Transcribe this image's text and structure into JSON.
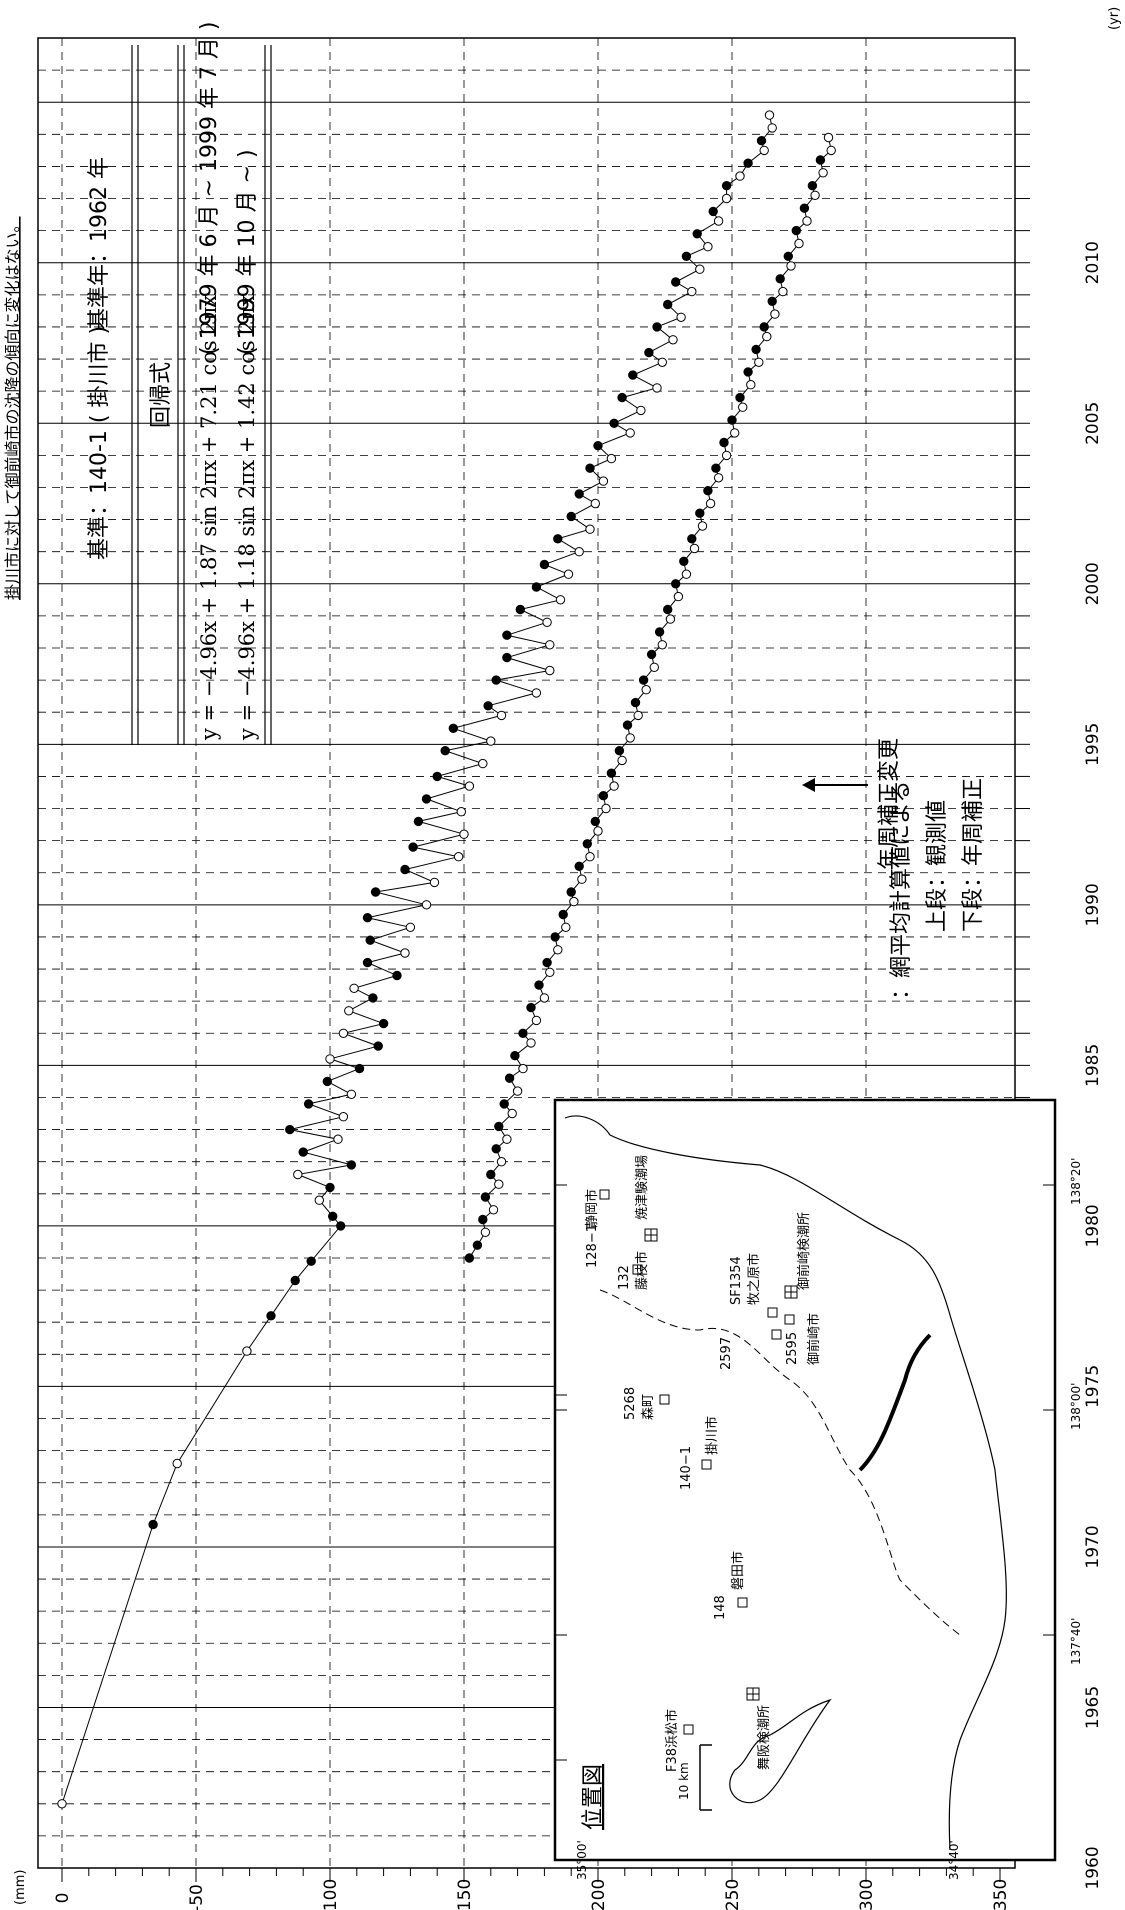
{
  "chart_data": {
    "type": "line",
    "title": "掛川市に対して御前崎市の沈降の傾向に変化はない。",
    "x_unit": "(yr)",
    "y_unit": "(mm)",
    "xlim": [
      1960,
      2017
    ],
    "ylim": [
      -350,
      10
    ],
    "x_ticks": [
      "1960",
      "1965",
      "1970",
      "1975",
      "1980",
      "1985",
      "1990",
      "1995",
      "2000",
      "2005",
      "2010"
    ],
    "y_ticks": [
      "0",
      "-50",
      "-100",
      "-150",
      "-200",
      "-250",
      "-300",
      "-350"
    ],
    "grid": true,
    "header": {
      "reference": "基準：140-1 ( 掛川市 )",
      "base_year": "基準年：1962 年",
      "regression_label": "回帰式",
      "formula_1": "y = −4.96x + 1.87 sin 2πx + 7.21 cos 2πx",
      "period_1": "( 1979 年  6  月   ~   1999 年 7 月 )",
      "formula_2": "y = −4.96x + 1.18 sin 2πx + 1.42 cos 2πx",
      "period_2": "( 1999 年 10 月   ~   )"
    },
    "annotation": "年周補正変更",
    "legend": {
      "line1": "：網平均計算値による",
      "line2": "上段：観測値",
      "line3": "下段：年周補正",
      "placement": "lower-right"
    },
    "series": [
      {
        "name": "上段：観測値",
        "x": [
          1962.0,
          1970.7,
          1972.6,
          1976.1,
          1977.2,
          1978.3,
          1978.9,
          1980.0,
          1980.3,
          1980.8,
          1981.2,
          1981.6,
          1981.9,
          1982.3,
          1982.7,
          1983.0,
          1983.4,
          1983.8,
          1984.1,
          1984.5,
          1984.9,
          1985.2,
          1985.6,
          1986.0,
          1986.3,
          1986.7,
          1987.1,
          1987.4,
          1987.8,
          1988.2,
          1988.5,
          1988.9,
          1989.3,
          1989.6,
          1990.0,
          1990.4,
          1990.7,
          1991.1,
          1991.5,
          1991.8,
          1992.2,
          1992.6,
          1992.9,
          1993.3,
          1993.7,
          1994.0,
          1994.4,
          1994.8,
          1995.1,
          1995.5,
          1995.9,
          1996.2,
          1996.6,
          1997.0,
          1997.3,
          1997.7,
          1998.1,
          1998.4,
          1998.8,
          1999.2,
          1999.5,
          1999.9,
          2000.3,
          2000.6,
          2001.0,
          2001.4,
          2001.7,
          2002.1,
          2002.5,
          2002.8,
          2003.2,
          2003.6,
          2003.9,
          2004.3,
          2004.7,
          2005.0,
          2005.4,
          2005.8,
          2006.1,
          2006.5,
          2006.9,
          2007.2,
          2007.6,
          2008.0,
          2008.3,
          2008.7,
          2009.1,
          2009.4,
          2009.8,
          2010.2,
          2010.5,
          2010.9,
          2011.3,
          2011.6,
          2012.0,
          2012.4,
          2012.7,
          2013.1,
          2013.5,
          2013.8,
          2014.2,
          2014.6
        ],
        "y": [
          0,
          -34,
          -43,
          -69,
          -78,
          -87,
          -93,
          -104,
          -101,
          -96,
          -100,
          -88,
          -108,
          -90,
          -103,
          -85,
          -105,
          -92,
          -108,
          -99,
          -111,
          -100,
          -118,
          -105,
          -120,
          -107,
          -116,
          -109,
          -125,
          -114,
          -128,
          -115,
          -130,
          -114,
          -136,
          -117,
          -139,
          -128,
          -148,
          -131,
          -150,
          -133,
          -149,
          -136,
          -152,
          -140,
          -157,
          -143,
          -160,
          -146,
          -164,
          -159,
          -177,
          -162,
          -182,
          -166,
          -182,
          -166,
          -181,
          -171,
          -186,
          -177,
          -189,
          -180,
          -193,
          -185,
          -197,
          -190,
          -199,
          -193,
          -202,
          -197,
          -205,
          -200,
          -212,
          -206,
          -216,
          -209,
          -222,
          -213,
          -224,
          -219,
          -228,
          -222,
          -231,
          -226,
          -235,
          -229,
          -238,
          -233,
          -241,
          -237,
          -245,
          -243,
          -248,
          -248,
          -253,
          -256,
          -262,
          -261,
          -265,
          -264
        ],
        "filled": [
          false,
          true,
          false,
          false,
          true,
          true,
          true,
          true,
          true,
          false,
          true,
          false,
          true,
          true,
          false,
          true,
          false,
          true,
          false,
          true,
          true,
          false,
          true,
          false,
          true,
          false,
          true,
          false,
          true,
          true,
          false,
          true,
          false,
          true,
          false,
          true,
          false,
          true,
          false,
          true,
          false,
          true,
          false,
          true,
          false,
          true,
          false,
          true,
          false,
          true,
          false,
          true,
          false,
          true,
          false,
          true,
          false,
          true,
          false,
          true,
          false,
          true,
          false,
          true,
          false,
          true,
          false,
          true,
          false,
          true,
          false,
          true,
          false,
          true,
          false,
          true,
          false,
          true,
          false,
          true,
          false,
          true,
          false,
          true,
          false,
          true,
          false,
          true,
          false,
          true,
          false,
          true,
          false,
          true,
          false,
          true,
          false,
          true,
          false,
          true,
          false,
          false
        ]
      },
      {
        "name": "下段：年周補正",
        "x": [
          1979.0,
          1979.4,
          1979.8,
          1980.2,
          1980.5,
          1980.9,
          1981.3,
          1981.6,
          1982.0,
          1982.4,
          1982.7,
          1983.1,
          1983.5,
          1983.8,
          1984.2,
          1984.6,
          1984.9,
          1985.3,
          1985.7,
          1986.0,
          1986.4,
          1986.8,
          1987.1,
          1987.5,
          1987.9,
          1988.2,
          1988.6,
          1989.0,
          1989.3,
          1989.7,
          1990.1,
          1990.4,
          1990.8,
          1991.2,
          1991.5,
          1991.9,
          1992.3,
          1992.6,
          1993.0,
          1993.4,
          1993.7,
          1994.1,
          1994.5,
          1994.8,
          1995.2,
          1995.6,
          1995.9,
          1996.3,
          1996.7,
          1997.0,
          1997.4,
          1997.8,
          1998.1,
          1998.5,
          1998.9,
          1999.2,
          1999.6,
          2000.0,
          2000.3,
          2000.7,
          2001.1,
          2001.4,
          2001.8,
          2002.2,
          2002.5,
          2002.9,
          2003.3,
          2003.6,
          2004.0,
          2004.4,
          2004.7,
          2005.1,
          2005.5,
          2005.8,
          2006.2,
          2006.6,
          2006.9,
          2007.3,
          2007.7,
          2008.0,
          2008.4,
          2008.8,
          2009.1,
          2009.5,
          2009.9,
          2010.2,
          2010.6,
          2011.0,
          2011.3,
          2011.7,
          2012.1,
          2012.4,
          2012.8,
          2013.2,
          2013.5,
          2013.9
        ],
        "y": [
          -152,
          -155,
          -158,
          -157,
          -161,
          -158,
          -163,
          -160,
          -164,
          -162,
          -166,
          -163,
          -168,
          -165,
          -170,
          -167,
          -172,
          -169,
          -175,
          -172,
          -177,
          -175,
          -180,
          -178,
          -182,
          -181,
          -185,
          -184,
          -188,
          -187,
          -191,
          -190,
          -194,
          -193,
          -197,
          -196,
          -200,
          -199,
          -203,
          -202,
          -206,
          -205,
          -209,
          -208,
          -212,
          -211,
          -215,
          -214,
          -218,
          -217,
          -221,
          -220,
          -224,
          -223,
          -227,
          -226,
          -230,
          -229,
          -233,
          -232,
          -236,
          -235,
          -239,
          -238,
          -242,
          -241,
          -245,
          -244,
          -248,
          -247,
          -251,
          -250,
          -254,
          -253,
          -257,
          -256,
          -260,
          -259,
          -263,
          -262,
          -266,
          -265,
          -269,
          -268,
          -272,
          -271,
          -275,
          -274,
          -278,
          -277,
          -281,
          -280,
          -284,
          -283,
          -287,
          -286
        ],
        "filled": [
          true,
          true,
          false,
          true,
          false,
          true,
          false,
          true,
          false,
          true,
          false,
          true,
          false,
          true,
          false,
          true,
          false,
          true,
          false,
          true,
          false,
          true,
          false,
          true,
          false,
          true,
          false,
          true,
          false,
          true,
          false,
          true,
          false,
          true,
          false,
          true,
          false,
          true,
          false,
          true,
          false,
          true,
          false,
          true,
          false,
          true,
          false,
          true,
          false,
          true,
          false,
          true,
          false,
          true,
          false,
          true,
          false,
          true,
          false,
          true,
          false,
          true,
          false,
          true,
          false,
          true,
          false,
          true,
          false,
          true,
          false,
          true,
          false,
          true,
          false,
          true,
          false,
          true,
          false,
          true,
          false,
          true,
          false,
          true,
          false,
          true,
          false,
          true,
          false,
          true,
          false,
          true,
          false,
          true,
          false,
          false
        ]
      }
    ]
  },
  "inset_map": {
    "title": "位置図",
    "scale": "10 km",
    "lat_labels": [
      "35°00'",
      "34°40'"
    ],
    "lon_labels": [
      "137°40'",
      "138°00'",
      "138°20'"
    ],
    "places": [
      {
        "id": "128−1",
        "name": "静岡市"
      },
      {
        "id": "",
        "name": "焼津験潮場"
      },
      {
        "id": "132",
        "name": "藤枝市"
      },
      {
        "id": "5268",
        "name": "森町"
      },
      {
        "id": "140−1",
        "name": "掛川市"
      },
      {
        "id": "2597",
        "name": ""
      },
      {
        "id": "SF1354",
        "name": "牧之原市"
      },
      {
        "id": "",
        "name": "御前崎検潮所"
      },
      {
        "id": "2595",
        "name": "御前崎市"
      },
      {
        "id": "148",
        "name": "磐田市"
      },
      {
        "id": "F38",
        "name": "浜松市"
      },
      {
        "id": "",
        "name": "舞阪検潮所"
      }
    ]
  }
}
